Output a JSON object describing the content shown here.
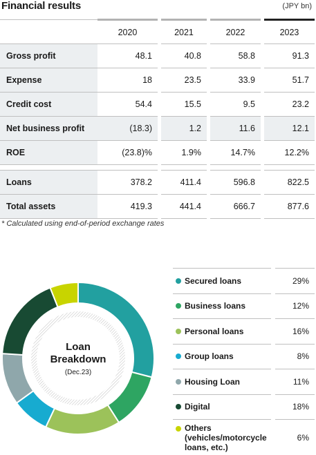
{
  "header": {
    "title": "Financial results",
    "unit": "(JPY bn)"
  },
  "table": {
    "years": [
      "2020",
      "2021",
      "2022",
      "2023"
    ],
    "rows": [
      {
        "label": "Gross profit",
        "values": [
          "48.1",
          "40.8",
          "58.8",
          "91.3"
        ]
      },
      {
        "label": "Expense",
        "values": [
          "18",
          "23.5",
          "33.9",
          "51.7"
        ]
      },
      {
        "label": "Credit cost",
        "values": [
          "54.4",
          "15.5",
          "9.5",
          "23.2"
        ]
      },
      {
        "label": "Net business profit",
        "values": [
          "(18.3)",
          "1.2",
          "11.6",
          "12.1"
        ]
      },
      {
        "label": "ROE",
        "values": [
          "(23.8)%",
          "1.9%",
          "14.7%",
          "12.2%"
        ]
      },
      {
        "label": "Loans",
        "values": [
          "378.2",
          "411.4",
          "596.8",
          "822.5"
        ]
      },
      {
        "label": "Total assets",
        "values": [
          "419.3",
          "441.4",
          "666.7",
          "877.6"
        ]
      }
    ]
  },
  "note": "* Calculated using end-of-period exchange rates",
  "breakdown": {
    "center_title_line1": "Loan",
    "center_title_line2": "Breakdown",
    "center_subtitle": "(Dec.23)",
    "items": [
      {
        "label": "Secured loans",
        "percent": "29%",
        "value": 29,
        "color": "#22a0a0"
      },
      {
        "label": "Business loans",
        "percent": "12%",
        "value": 12,
        "color": "#2ea562"
      },
      {
        "label": "Personal loans",
        "percent": "16%",
        "value": 16,
        "color": "#9cc25a"
      },
      {
        "label": "Group loans",
        "percent": "8%",
        "value": 8,
        "color": "#17abd0"
      },
      {
        "label": "Housing Loan",
        "percent": "11%",
        "value": 11,
        "color": "#8fa7ab"
      },
      {
        "label": "Digital",
        "percent": "18%",
        "value": 18,
        "color": "#184a33"
      },
      {
        "label": "Others (vehicles/motorcycle loans, etc.)",
        "percent": "6%",
        "value": 6,
        "color": "#c8d400"
      }
    ]
  }
}
